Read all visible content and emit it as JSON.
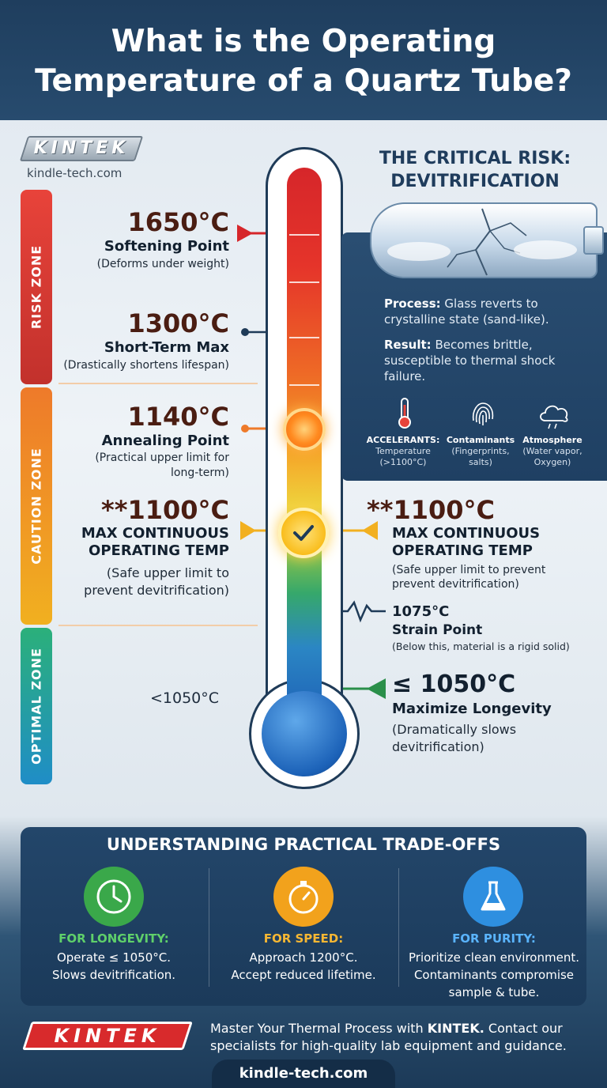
{
  "title": "What is the Operating Temperature of a Quartz Tube?",
  "brand": {
    "logo": "KINTEK",
    "url": "kindle-tech.com"
  },
  "zones": {
    "risk": "RISK ZONE",
    "caution": "CAUTION ZONE",
    "optimal": "OPTIMAL ZONE"
  },
  "left_labels": {
    "softening": {
      "temp": "1650°C",
      "name": "Softening Point",
      "note": "(Deforms under weight)"
    },
    "short_term": {
      "temp": "1300°C",
      "name": "Short-Term Max",
      "note": "(Drastically shortens lifespan)"
    },
    "annealing": {
      "temp": "1140°C",
      "name": "Annealing Point",
      "note_line1": "(Practical upper limit for",
      "note_line2": "long-term)"
    },
    "max_cont": {
      "temp": "**1100°C",
      "name_line1": "MAX CONTINUOUS",
      "name_line2": "OPERATING TEMP",
      "note_line1": "(Safe upper limit to",
      "note_line2": "prevent devitrification)"
    },
    "optimal": {
      "temp": "<1050°C"
    }
  },
  "risk_panel": {
    "title_line1": "THE CRITICAL RISK:",
    "title_line2": "DEVITRIFICATION",
    "process_label": "Process:",
    "process_text": "Glass reverts to crystalline state (sand-like).",
    "result_label": "Result:",
    "result_text": "Becomes brittle, susceptible to thermal shock failure.",
    "accelerants": [
      {
        "label": "ACCELERANTS:",
        "sub1": "Temperature",
        "sub2": "(>1100°C)",
        "icon": "thermometer-icon"
      },
      {
        "label": "Contaminants",
        "sub1": "(Fingerprints,",
        "sub2": "salts)",
        "icon": "fingerprint-icon"
      },
      {
        "label": "Atmosphere",
        "sub1": "(Water vapor,",
        "sub2": "Oxygen)",
        "icon": "cloud-icon"
      }
    ]
  },
  "right_labels": {
    "max_cont": {
      "temp": "**1100°C",
      "name_line1": "MAX CONTINUOUS",
      "name_line2": "OPERATING TEMP",
      "note_line1": "(Safe upper limit to prevent",
      "note_line2": "prevent devitrification)"
    },
    "strain": {
      "temp": "1075°C",
      "name": "Strain Point",
      "note": "(Below this, material is a rigid solid)"
    },
    "longevity": {
      "temp": "≤ 1050°C",
      "name": "Maximize Longevity",
      "note_line1": "(Dramatically slows",
      "note_line2": "devitrification)"
    }
  },
  "tradeoffs": {
    "title": "UNDERSTANDING PRACTICAL TRADE-OFFS",
    "items": [
      {
        "heading": "FOR LONGEVITY:",
        "line1": "Operate ≤ 1050°C.",
        "line2": "Slows devitrification.",
        "icon": "clock-icon",
        "color": "#3aa84a",
        "heading_color": "#5fd06a"
      },
      {
        "heading": "FOR SPEED:",
        "line1": "Approach 1200°C.",
        "line2": "Accept reduced lifetime.",
        "icon": "stopwatch-icon",
        "color": "#f2a21c",
        "heading_color": "#f7b733"
      },
      {
        "heading": "FOR PURITY:",
        "line1": "Prioritize clean environment.",
        "line2": "Contaminants compromise",
        "line3": "sample & tube.",
        "icon": "flask-icon",
        "color": "#2e8fe0",
        "heading_color": "#5ab4ff"
      }
    ]
  },
  "footer": {
    "logo": "KINTEK",
    "text_before": "Master Your Thermal Process with ",
    "text_brand": "KINTEK.",
    "text_after": " Contact our specialists for high-quality lab equipment and guidance.",
    "url": "kindle-tech.com"
  }
}
